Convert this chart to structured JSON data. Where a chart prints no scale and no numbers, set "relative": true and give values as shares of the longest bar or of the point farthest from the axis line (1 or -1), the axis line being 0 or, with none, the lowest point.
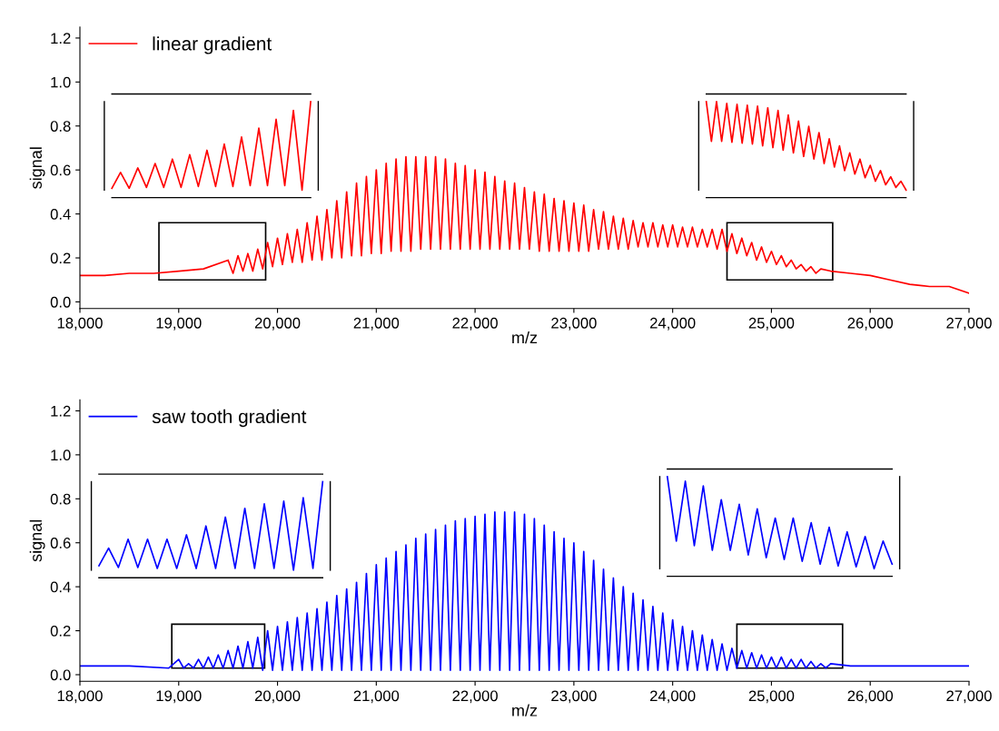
{
  "chart_data": [
    {
      "type": "line",
      "xlabel": "m/z",
      "ylabel": "signal",
      "xlim": [
        18000,
        27000
      ],
      "ylim": [
        -0.03,
        1.25
      ],
      "xticks": [
        {
          "value": 18000,
          "label": "18,000"
        },
        {
          "value": 19000,
          "label": "19,000"
        },
        {
          "value": 20000,
          "label": "20,000"
        },
        {
          "value": 21000,
          "label": "21,000"
        },
        {
          "value": 22000,
          "label": "22,000"
        },
        {
          "value": 23000,
          "label": "23,000"
        },
        {
          "value": 24000,
          "label": "24,000"
        },
        {
          "value": 25000,
          "label": "25,000"
        },
        {
          "value": 26000,
          "label": "26,000"
        },
        {
          "value": 27000,
          "label": "27,000"
        }
      ],
      "yticks": [
        {
          "value": 0,
          "label": "0.0"
        },
        {
          "value": 0.2,
          "label": "0.2"
        },
        {
          "value": 0.4,
          "label": "0.4"
        },
        {
          "value": 0.6,
          "label": "0.6"
        },
        {
          "value": 0.8,
          "label": "0.8"
        },
        {
          "value": 1.0,
          "label": "1.0"
        },
        {
          "value": 1.2,
          "label": "1.2"
        }
      ],
      "legend": "top left",
      "grid": false,
      "series": [
        {
          "name": "linear gradient",
          "color": "#ff0000",
          "x": [
            18000,
            18250,
            18500,
            18750,
            19000,
            19250,
            19500,
            19550,
            19600,
            19650,
            19700,
            19750,
            19800,
            19850,
            19900,
            19950,
            20000,
            20050,
            20100,
            20150,
            20200,
            20250,
            20300,
            20350,
            20400,
            20450,
            20500,
            20550,
            20600,
            20650,
            20700,
            20750,
            20800,
            20850,
            20900,
            20950,
            21000,
            21050,
            21100,
            21150,
            21200,
            21250,
            21300,
            21350,
            21400,
            21450,
            21500,
            21550,
            21600,
            21650,
            21700,
            21750,
            21800,
            21850,
            21900,
            21950,
            22000,
            22050,
            22100,
            22150,
            22200,
            22250,
            22300,
            22350,
            22400,
            22450,
            22500,
            22550,
            22600,
            22650,
            22700,
            22750,
            22800,
            22850,
            22900,
            22950,
            23000,
            23050,
            23100,
            23150,
            23200,
            23250,
            23300,
            23350,
            23400,
            23450,
            23500,
            23550,
            23600,
            23650,
            23700,
            23750,
            23800,
            23850,
            23900,
            23950,
            24000,
            24050,
            24100,
            24150,
            24200,
            24250,
            24300,
            24350,
            24400,
            24450,
            24500,
            24550,
            24600,
            24650,
            24700,
            24750,
            24800,
            24850,
            24900,
            24950,
            25000,
            25050,
            25100,
            25150,
            25200,
            25250,
            25300,
            25350,
            25400,
            25450,
            25500,
            25600,
            25800,
            26000,
            26200,
            26400,
            26600,
            26800,
            27000
          ],
          "values": [
            0.12,
            0.12,
            0.13,
            0.13,
            0.14,
            0.15,
            0.19,
            0.13,
            0.21,
            0.14,
            0.22,
            0.14,
            0.24,
            0.15,
            0.27,
            0.16,
            0.29,
            0.17,
            0.31,
            0.18,
            0.33,
            0.18,
            0.36,
            0.19,
            0.39,
            0.19,
            0.42,
            0.2,
            0.46,
            0.2,
            0.5,
            0.21,
            0.54,
            0.21,
            0.57,
            0.22,
            0.6,
            0.22,
            0.63,
            0.23,
            0.65,
            0.23,
            0.66,
            0.23,
            0.66,
            0.24,
            0.66,
            0.24,
            0.66,
            0.24,
            0.65,
            0.24,
            0.63,
            0.24,
            0.62,
            0.24,
            0.6,
            0.24,
            0.59,
            0.24,
            0.57,
            0.24,
            0.55,
            0.24,
            0.54,
            0.24,
            0.52,
            0.24,
            0.5,
            0.23,
            0.49,
            0.23,
            0.47,
            0.23,
            0.46,
            0.23,
            0.45,
            0.23,
            0.44,
            0.23,
            0.42,
            0.24,
            0.41,
            0.24,
            0.39,
            0.24,
            0.38,
            0.24,
            0.37,
            0.25,
            0.36,
            0.25,
            0.36,
            0.25,
            0.35,
            0.25,
            0.35,
            0.25,
            0.34,
            0.25,
            0.34,
            0.25,
            0.33,
            0.25,
            0.33,
            0.24,
            0.33,
            0.23,
            0.31,
            0.22,
            0.29,
            0.21,
            0.27,
            0.19,
            0.25,
            0.18,
            0.23,
            0.17,
            0.21,
            0.16,
            0.19,
            0.15,
            0.17,
            0.14,
            0.16,
            0.13,
            0.15,
            0.14,
            0.13,
            0.12,
            0.1,
            0.08,
            0.07,
            0.07,
            0.04
          ]
        }
      ]
    },
    {
      "type": "line",
      "relative": true,
      "categories": [
        null,
        null,
        null,
        null,
        null,
        null,
        null,
        null,
        null,
        null,
        null,
        null,
        null,
        null,
        null,
        null,
        null,
        null,
        null,
        null,
        null,
        null,
        null,
        null
      ],
      "series": [
        {
          "color": "#ff0000",
          "values": [
            0.02,
            0.2,
            0.02,
            0.25,
            0.03,
            0.3,
            0.03,
            0.35,
            0.03,
            0.4,
            0.04,
            0.45,
            0.04,
            0.52,
            0.04,
            0.6,
            0.05,
            0.7,
            0.05,
            0.8,
            0.05,
            0.9,
            0.0,
            1.0
          ]
        }
      ]
    },
    {
      "type": "line",
      "relative": true,
      "categories": [
        null,
        null,
        null,
        null,
        null,
        null,
        null,
        null,
        null,
        null,
        null,
        null,
        null,
        null,
        null,
        null,
        null,
        null,
        null,
        null,
        null,
        null,
        null,
        null,
        null,
        null,
        null,
        null,
        null,
        null,
        null,
        null,
        null,
        null,
        null,
        null,
        null,
        null,
        null,
        null
      ],
      "series": [
        {
          "color": "#ff0000",
          "values": [
            1.0,
            0.55,
            1.0,
            0.55,
            0.98,
            0.54,
            0.97,
            0.53,
            0.96,
            0.52,
            0.95,
            0.5,
            0.93,
            0.48,
            0.9,
            0.45,
            0.85,
            0.42,
            0.78,
            0.38,
            0.72,
            0.35,
            0.65,
            0.3,
            0.58,
            0.26,
            0.5,
            0.22,
            0.42,
            0.18,
            0.35,
            0.14,
            0.28,
            0.1,
            0.22,
            0.06,
            0.15,
            0.03,
            0.1,
            0.0
          ]
        }
      ]
    },
    {
      "type": "line",
      "xlabel": "m/z",
      "ylabel": "signal",
      "xlim": [
        18000,
        27000
      ],
      "ylim": [
        -0.03,
        1.25
      ],
      "xticks": [
        {
          "value": 18000,
          "label": "18,000"
        },
        {
          "value": 19000,
          "label": "19,000"
        },
        {
          "value": 20000,
          "label": "20,000"
        },
        {
          "value": 21000,
          "label": "21,000"
        },
        {
          "value": 22000,
          "label": "22,000"
        },
        {
          "value": 23000,
          "label": "23,000"
        },
        {
          "value": 24000,
          "label": "24,000"
        },
        {
          "value": 25000,
          "label": "25,000"
        },
        {
          "value": 26000,
          "label": "26,000"
        },
        {
          "value": 27000,
          "label": "27,000"
        }
      ],
      "yticks": [
        {
          "value": 0,
          "label": "0.0"
        },
        {
          "value": 0.2,
          "label": "0.2"
        },
        {
          "value": 0.4,
          "label": "0.4"
        },
        {
          "value": 0.6,
          "label": "0.6"
        },
        {
          "value": 0.8,
          "label": "0.8"
        },
        {
          "value": 1.0,
          "label": "1.0"
        },
        {
          "value": 1.2,
          "label": "1.2"
        }
      ],
      "legend": "top left",
      "grid": false,
      "series": [
        {
          "name": "saw tooth gradient",
          "color": "#0000ff",
          "x": [
            18000,
            18500,
            18900,
            19000,
            19050,
            19100,
            19150,
            19200,
            19250,
            19300,
            19350,
            19400,
            19450,
            19500,
            19550,
            19600,
            19650,
            19700,
            19750,
            19800,
            19850,
            19900,
            19950,
            20000,
            20050,
            20100,
            20150,
            20200,
            20250,
            20300,
            20350,
            20400,
            20450,
            20500,
            20550,
            20600,
            20650,
            20700,
            20750,
            20800,
            20850,
            20900,
            20950,
            21000,
            21050,
            21100,
            21150,
            21200,
            21250,
            21300,
            21350,
            21400,
            21450,
            21500,
            21550,
            21600,
            21650,
            21700,
            21750,
            21800,
            21850,
            21900,
            21950,
            22000,
            22050,
            22100,
            22150,
            22200,
            22250,
            22300,
            22350,
            22400,
            22450,
            22500,
            22550,
            22600,
            22650,
            22700,
            22750,
            22800,
            22850,
            22900,
            22950,
            23000,
            23050,
            23100,
            23150,
            23200,
            23250,
            23300,
            23350,
            23400,
            23450,
            23500,
            23550,
            23600,
            23650,
            23700,
            23750,
            23800,
            23850,
            23900,
            23950,
            24000,
            24050,
            24100,
            24150,
            24200,
            24250,
            24300,
            24350,
            24400,
            24450,
            24500,
            24550,
            24600,
            24650,
            24700,
            24750,
            24800,
            24850,
            24900,
            24950,
            25000,
            25050,
            25100,
            25150,
            25200,
            25250,
            25300,
            25350,
            25400,
            25450,
            25500,
            25550,
            25600,
            25800,
            26500,
            27000
          ],
          "values": [
            0.04,
            0.04,
            0.03,
            0.07,
            0.03,
            0.05,
            0.03,
            0.07,
            0.03,
            0.08,
            0.03,
            0.09,
            0.03,
            0.11,
            0.03,
            0.13,
            0.03,
            0.15,
            0.03,
            0.17,
            0.02,
            0.2,
            0.02,
            0.22,
            0.02,
            0.24,
            0.02,
            0.26,
            0.02,
            0.28,
            0.02,
            0.3,
            0.02,
            0.33,
            0.02,
            0.36,
            0.02,
            0.39,
            0.02,
            0.42,
            0.02,
            0.46,
            0.02,
            0.5,
            0.02,
            0.53,
            0.02,
            0.56,
            0.02,
            0.59,
            0.02,
            0.62,
            0.02,
            0.64,
            0.02,
            0.66,
            0.02,
            0.68,
            0.02,
            0.7,
            0.02,
            0.71,
            0.02,
            0.72,
            0.02,
            0.73,
            0.02,
            0.74,
            0.02,
            0.74,
            0.02,
            0.74,
            0.02,
            0.73,
            0.02,
            0.71,
            0.02,
            0.68,
            0.02,
            0.65,
            0.02,
            0.62,
            0.02,
            0.6,
            0.02,
            0.56,
            0.02,
            0.52,
            0.02,
            0.48,
            0.02,
            0.44,
            0.02,
            0.4,
            0.02,
            0.37,
            0.02,
            0.34,
            0.02,
            0.31,
            0.02,
            0.28,
            0.02,
            0.25,
            0.02,
            0.22,
            0.02,
            0.2,
            0.02,
            0.18,
            0.02,
            0.16,
            0.02,
            0.14,
            0.02,
            0.12,
            0.03,
            0.11,
            0.03,
            0.1,
            0.03,
            0.09,
            0.03,
            0.08,
            0.03,
            0.08,
            0.03,
            0.07,
            0.03,
            0.07,
            0.03,
            0.06,
            0.03,
            0.05,
            0.03,
            0.05,
            0.04,
            0.04,
            0.04
          ]
        }
      ]
    },
    {
      "type": "line",
      "relative": true,
      "categories": [
        null,
        null,
        null,
        null,
        null,
        null,
        null,
        null,
        null,
        null,
        null,
        null,
        null,
        null,
        null,
        null,
        null,
        null,
        null,
        null,
        null,
        null,
        null,
        null
      ],
      "series": [
        {
          "color": "#0000ff",
          "values": [
            0.05,
            0.25,
            0.03,
            0.35,
            0.03,
            0.35,
            0.02,
            0.35,
            0.02,
            0.4,
            0.02,
            0.5,
            0.02,
            0.6,
            0.02,
            0.7,
            0.02,
            0.75,
            0.02,
            0.78,
            0.0,
            0.82,
            0.02,
            1.0
          ]
        }
      ]
    },
    {
      "type": "line",
      "relative": true,
      "categories": [
        null,
        null,
        null,
        null,
        null,
        null,
        null,
        null,
        null,
        null,
        null,
        null,
        null,
        null,
        null,
        null,
        null,
        null,
        null,
        null,
        null,
        null,
        null,
        null,
        null,
        null
      ],
      "series": [
        {
          "color": "#0000ff",
          "values": [
            1.0,
            0.3,
            0.95,
            0.25,
            0.9,
            0.2,
            0.75,
            0.2,
            0.7,
            0.15,
            0.65,
            0.12,
            0.55,
            0.1,
            0.55,
            0.08,
            0.5,
            0.05,
            0.45,
            0.03,
            0.4,
            0.02,
            0.35,
            0.0,
            0.3,
            0.05
          ]
        }
      ]
    }
  ]
}
